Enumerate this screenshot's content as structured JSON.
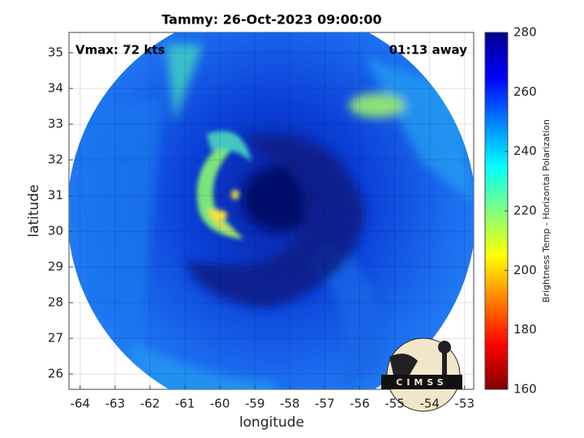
{
  "chart_data": {
    "type": "image-map",
    "title": "Tammy: 26-Oct-2023 09:00:00",
    "xlabel": "longitude",
    "ylabel": "latitude",
    "xlim": [
      -64.32,
      -52.74
    ],
    "ylim": [
      25.57,
      35.57
    ],
    "xticks": [
      -64,
      -63,
      -62,
      -61,
      -60,
      -59,
      -58,
      -57,
      -56,
      -55,
      -54,
      -53
    ],
    "yticks": [
      26,
      27,
      28,
      29,
      30,
      31,
      32,
      33,
      34,
      35
    ],
    "grid": true,
    "annotations": [
      "Vmax: 72 kts",
      "01:13 away"
    ],
    "logo": "CIMSS",
    "colorbar": {
      "label": "Brightness Temp - Horizontal Polarization",
      "lim": [
        160,
        280
      ],
      "ticks": [
        160,
        180,
        200,
        220,
        240,
        260,
        280
      ],
      "colormap": "jet",
      "reversed": true
    }
  }
}
